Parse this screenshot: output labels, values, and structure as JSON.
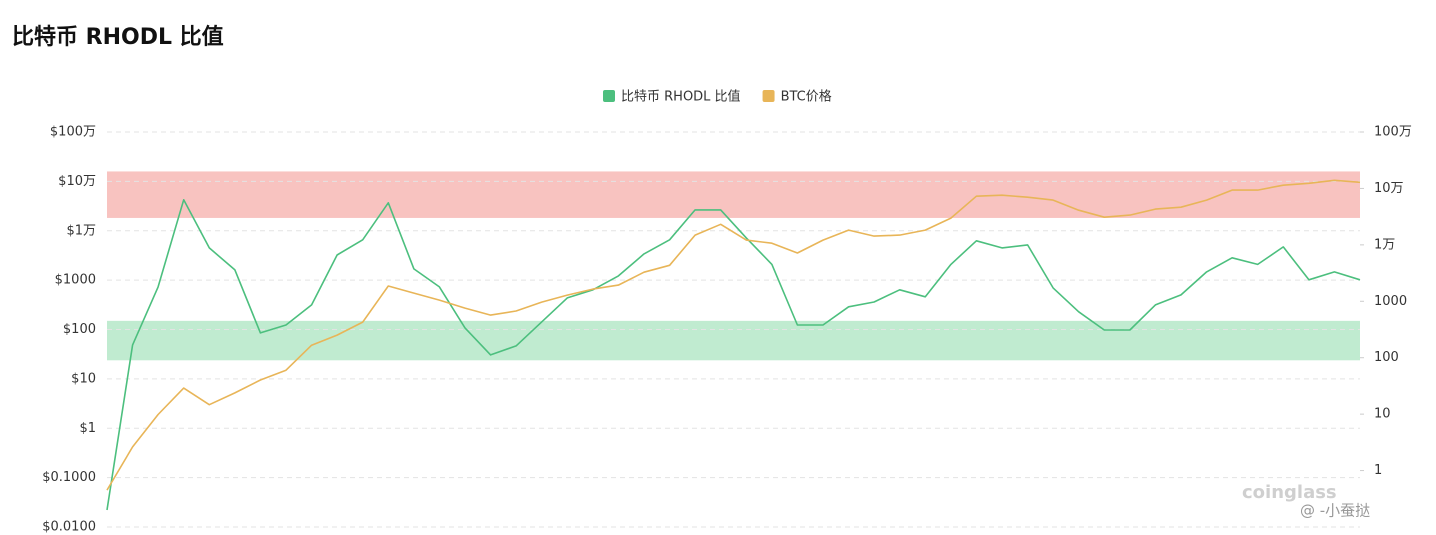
{
  "chart_data": {
    "type": "line",
    "title": "比特币 RHODL 比值",
    "log_scale": true,
    "grid": true,
    "legend": "top",
    "ylim": [
      0.01,
      1000000
    ],
    "yticks": [
      {
        "value": 0.01,
        "label": "$0.0100"
      },
      {
        "value": 0.1,
        "label": "$0.1000"
      },
      {
        "value": 1,
        "label": "$1"
      },
      {
        "value": 10,
        "label": "$10"
      },
      {
        "value": 100,
        "label": "$100"
      },
      {
        "value": 1000,
        "label": "$1000"
      },
      {
        "value": 10000,
        "label": "$1万"
      },
      {
        "value": 100000,
        "label": "$10万"
      },
      {
        "value": 1000000,
        "label": "$100万"
      }
    ],
    "y2lim": [
      0.1,
      1000000
    ],
    "y2ticks": [
      1,
      10,
      100,
      1000,
      {
        "value": 10000,
        "label": "1万"
      },
      {
        "value": 100000,
        "label": "10万"
      },
      {
        "value": 1000000,
        "label": "100万"
      }
    ],
    "bands": [
      {
        "axis": "y2",
        "from": 30000,
        "to": 200000,
        "color": "#f7b8b5"
      },
      {
        "axis": "y2",
        "from": 90,
        "to": 450,
        "color": "#b5e8c8"
      }
    ],
    "series": [
      {
        "name": "比特币 RHODL 比值",
        "color": "#4cbf7e",
        "axis": "y2",
        "values": [
          0.2,
          169,
          1800,
          63000,
          8850,
          3600,
          275,
          380,
          863,
          6600,
          12300,
          55600,
          3750,
          1800,
          337,
          112,
          162,
          431,
          1150,
          1600,
          2820,
          6920,
          12300,
          41700,
          41700,
          13300,
          4500,
          380,
          380,
          800,
          970,
          1600,
          1200,
          4500,
          11800,
          8850,
          10000,
          1730,
          650,
          310,
          310,
          863,
          1300,
          3320,
          5900,
          4500,
          9200,
          2400,
          3320,
          2400
        ]
      },
      {
        "name": "BTC价格",
        "color": "#e8b558",
        "values": [
          0.056,
          0.42,
          1.9,
          6.5,
          3,
          5.2,
          9.5,
          15,
          48,
          77,
          141,
          760,
          546,
          394,
          271,
          196,
          237,
          359,
          497,
          658,
          794,
          1450,
          2000,
          8150,
          13500,
          6460,
          5600,
          3540,
          6460,
          10300,
          7800,
          8150,
          10300,
          18000,
          50000,
          52500,
          47900,
          41700,
          26100,
          18800,
          20700,
          27400,
          30000,
          41700,
          66500,
          66500,
          83600,
          91600,
          105000,
          96000
        ]
      }
    ],
    "watermark": "coinglass",
    "credit": "@ -小蚕挞"
  }
}
